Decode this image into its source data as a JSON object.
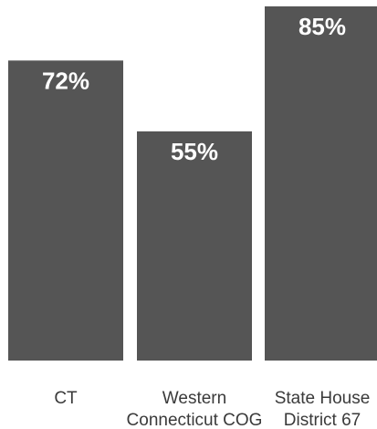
{
  "chart_data": {
    "type": "bar",
    "title": "",
    "xlabel": "",
    "ylabel": "",
    "categories": [
      [
        "CT"
      ],
      [
        "Western",
        "Connecticut COG"
      ],
      [
        "State House",
        "District 67"
      ]
    ],
    "values": [
      72,
      55,
      85
    ],
    "data_labels": [
      "72%",
      "55%",
      "85%"
    ],
    "ylim": [
      0,
      100
    ],
    "bar_color": "#555555",
    "label_color": "#ffffff",
    "grid": false,
    "legend": "none"
  }
}
